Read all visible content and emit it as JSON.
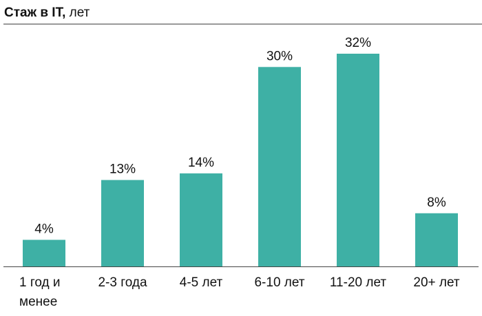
{
  "chart_data": {
    "type": "bar",
    "title": "Стаж в IT,",
    "subtitle": "лет",
    "categories": [
      "1 год и менее",
      "2-3 года",
      "4-5 лет",
      "6-10 лет",
      "11-20 лет",
      "20+ лет"
    ],
    "values": [
      4,
      13,
      14,
      30,
      32,
      8
    ],
    "value_labels": [
      "4%",
      "13%",
      "14%",
      "30%",
      "32%",
      "8%"
    ],
    "color": "#3eb0a5"
  }
}
